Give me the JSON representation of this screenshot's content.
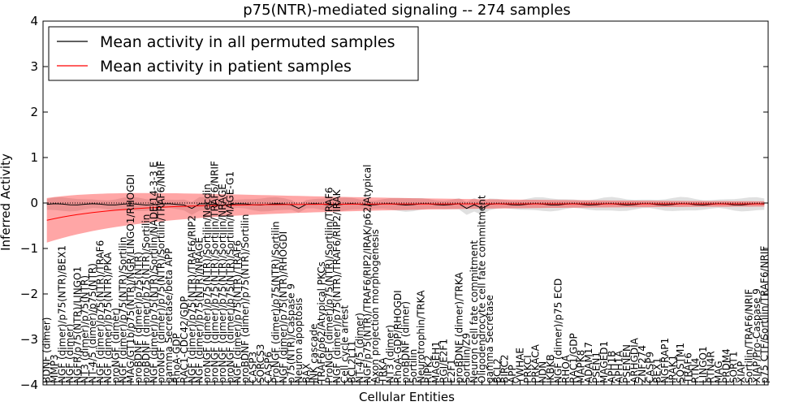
{
  "chart_data": {
    "type": "line",
    "title": "p75(NTR)-mediated signaling -- 274 samples",
    "xlabel": "Cellular Entities",
    "ylabel": "Inferred Activity",
    "ylim": [
      -4,
      4
    ],
    "yticks": [
      "4",
      "3",
      "2",
      "1",
      "0",
      "−1",
      "−2",
      "−3",
      "−4"
    ],
    "legend_position": "top-left",
    "series": [
      {
        "name": "Mean activity in all permuted samples",
        "color": "#000000"
      },
      {
        "name": "Mean activity in patient samples",
        "color": "#ff0000"
      }
    ],
    "band_colors": {
      "permuted": "#bbbbbb",
      "patient": "#ff0000"
    },
    "entity_labels": [
      "BDNF (dimer)",
      "MMP3",
      "NGF (dimer)/p75(NTR)/BEX1",
      "NGF (dimer)",
      "NGFR/p75(NTR)/LINGO1",
      "NT3 (dimer)/p75(NTR)",
      "NT-4/5 (dimer)/p75(NTR)",
      "NGF (dimer)/p75(NTR)/TRAF6",
      "NGF (dimer)/p75(NTR)/PKA",
      "proNGF (dimer)",
      "NGF (dimer)/p75(NTR)/Sortilin",
      "MAG/GT1b/p75(NTR)/NGR/LINGO1/RHOGDI",
      "proBDNF (dimer)/p75(NTR)",
      "proBDNF (dimer)/p75(NTR)/Sortilin",
      "NGF (dimer)/p75(NTR)/Sortilin/NADE/14-3-3 E",
      "proNGF (dimer)/p75(NTR)/Sortilin/TRAF6/NRIF",
      "gamma Secretase/beta APP",
      "RhoA-GDP",
      "RAC1-CDC42/GDP",
      "NGF (dimer)/p75(NTR)/TRAF6/RIP2",
      "NGF (dimer)/p75(NTR)/NRAGE",
      "proNGF (dimer)/p75(NTR)/Sortilin/Necdin",
      "proNGF (dimer)/p75(NTR)/Sortilin/TRAF6/NRIF",
      "proNGF (dimer)/p75(NTR)/Sortilin/NRAGE",
      "proNGF (dimer)/p75(NTR)/Sortilin/MAGE-G1",
      "NGF (dimer)/p75(NTR)/TRAF6",
      "proBDNF (dimer)/p75(NTR)/Sortilin",
      "CASP3",
      "SORCS3",
      "CASP6",
      "ProNGF (dimer)/p75(NTR)/Sortilin",
      "NGF (dimer)/p75(NTR)/RHOGDI",
      "p75(NTR)/Caspase 9",
      "Neuron apoptosis",
      "BAX",
      "JNK cascade",
      "TRAF6/p62/Atypical PKCs",
      "ProNGF (dimer)/p75(NTR)/Sortilin/TRAF6",
      "NGF (dimer)/p75(NTR)/TRAF6/RIP2/IRAK",
      "Cell cycle arrest",
      "BCL2L11",
      "NT-4/5 (dimer)",
      "NGF/p75(NTR)/TRAF6/RIP2/IRAK/p62/Atypical",
      "Axon projection morphogenesis",
      "TRKA",
      "NT3 (dimer)",
      "RhoA-GDP/RHOGDI",
      "proBDNF (dimer)",
      "Sortilin",
      "Neurotrophin/TRKA",
      "RIPK2",
      "MAGEH1",
      "RGI/E2F1",
      "E2F1",
      "proBDNF (dimer)/TRKA",
      "Sortilin/Z9",
      "Neuron cell fate commitment",
      "Oligodendrocyte cell fate commitment",
      "gamma Secretase",
      "BCL2",
      "BIRC2",
      "APP",
      "YWHAE",
      "PRKCI",
      "PRKACA",
      "NDN",
      "IKBKB",
      "NGF (dimer)/p75 ECD",
      "RHOA",
      "RAC1/GDP",
      "MAPK8",
      "ADAM17",
      "PSEN1",
      "MAGED1",
      "APH1B",
      "APH1A",
      "PSENEN",
      "ARHGDIA",
      "ZNF274",
      "CASP9",
      "BEX1",
      "NGFRAP1",
      "IRAK1",
      "SQSTM1",
      "TRAF6",
      "RTN4",
      "LINGO1",
      "RTN4R",
      "MAG",
      "PRDM4",
      "SORT1",
      "XIAP",
      "Sortilin/TRAF6/NRIF",
      "XIAP/Pro-Caspase 9",
      "p75 CTF/Sortilin/TRAF6/NRIF"
    ]
  }
}
